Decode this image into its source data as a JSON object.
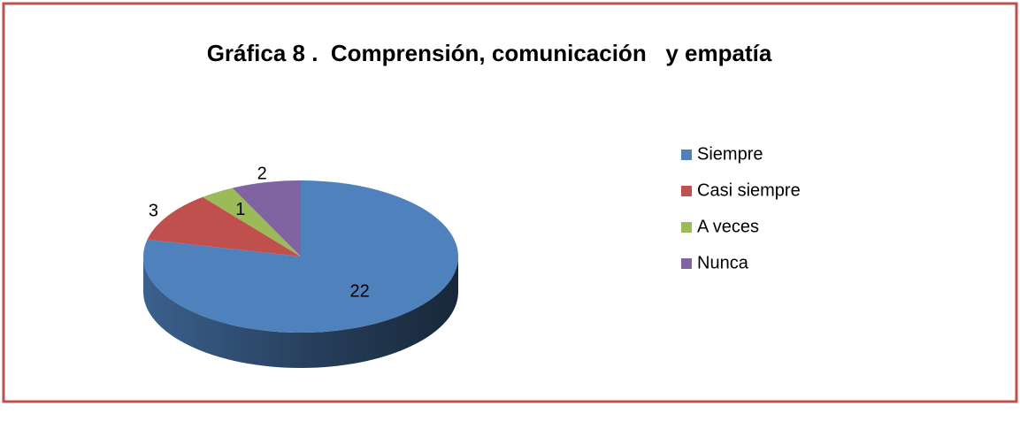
{
  "chart_data": {
    "type": "pie3d",
    "title": "Gráfica 8 .  Comprensión, comunicación   y empatía",
    "categories": [
      "Siempre",
      "Casi siempre",
      "A veces",
      "Nunca"
    ],
    "values": [
      22,
      3,
      1,
      2
    ],
    "colors": [
      "#4f81bd",
      "#c0504d",
      "#9bbb59",
      "#8064a2"
    ],
    "legend": "right"
  }
}
